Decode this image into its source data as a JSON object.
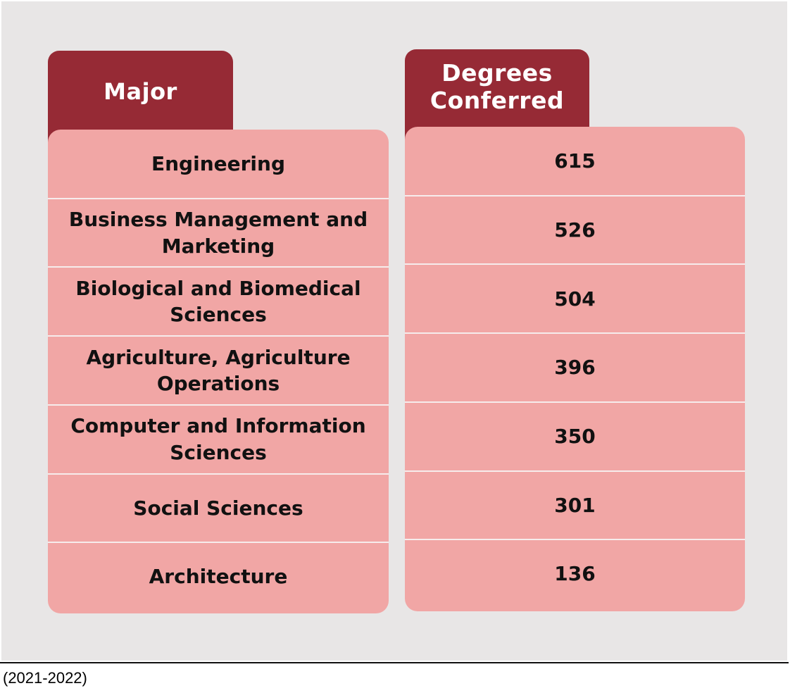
{
  "chart_data": {
    "type": "table",
    "columns": [
      "Major",
      "Degrees Conferred"
    ],
    "rows": [
      {
        "major": "Engineering",
        "degrees": 615
      },
      {
        "major": "Business Management and Marketing",
        "degrees": 526
      },
      {
        "major": "Biological and Biomedical Sciences",
        "degrees": 504
      },
      {
        "major": "Agriculture, Agriculture Operations",
        "degrees": 396
      },
      {
        "major": "Computer and Information Sciences",
        "degrees": 350
      },
      {
        "major": "Social Sciences",
        "degrees": 301
      },
      {
        "major": "Architecture",
        "degrees": 136
      }
    ],
    "footnote": "(2021-2022)"
  },
  "colors": {
    "header": "#962a35",
    "cell": "#f1a6a5",
    "background": "#e8e6e6",
    "text": "#111111",
    "header_text": "#ffffff"
  }
}
